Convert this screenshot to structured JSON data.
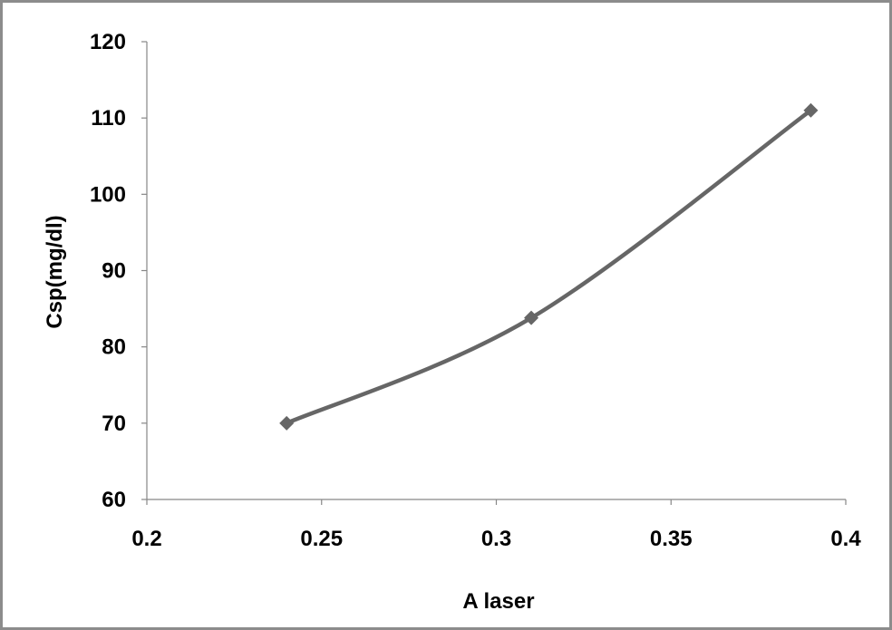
{
  "chart_data": {
    "type": "line",
    "xlabel": "A laser",
    "ylabel": "Csp(mg/dl)",
    "xlim": [
      0.2,
      0.4
    ],
    "ylim": [
      60,
      120
    ],
    "x_ticks": [
      "0.2",
      "0.25",
      "0.3",
      "0.35",
      "0.4"
    ],
    "y_ticks": [
      "60",
      "70",
      "80",
      "90",
      "100",
      "110",
      "120"
    ],
    "grid": false,
    "legend": "none",
    "series": [
      {
        "x": [
          0.24,
          0.31,
          0.39
        ],
        "y": [
          70,
          83.8,
          111
        ],
        "color": "#666666",
        "marker": "diamond",
        "smooth": true
      }
    ]
  }
}
